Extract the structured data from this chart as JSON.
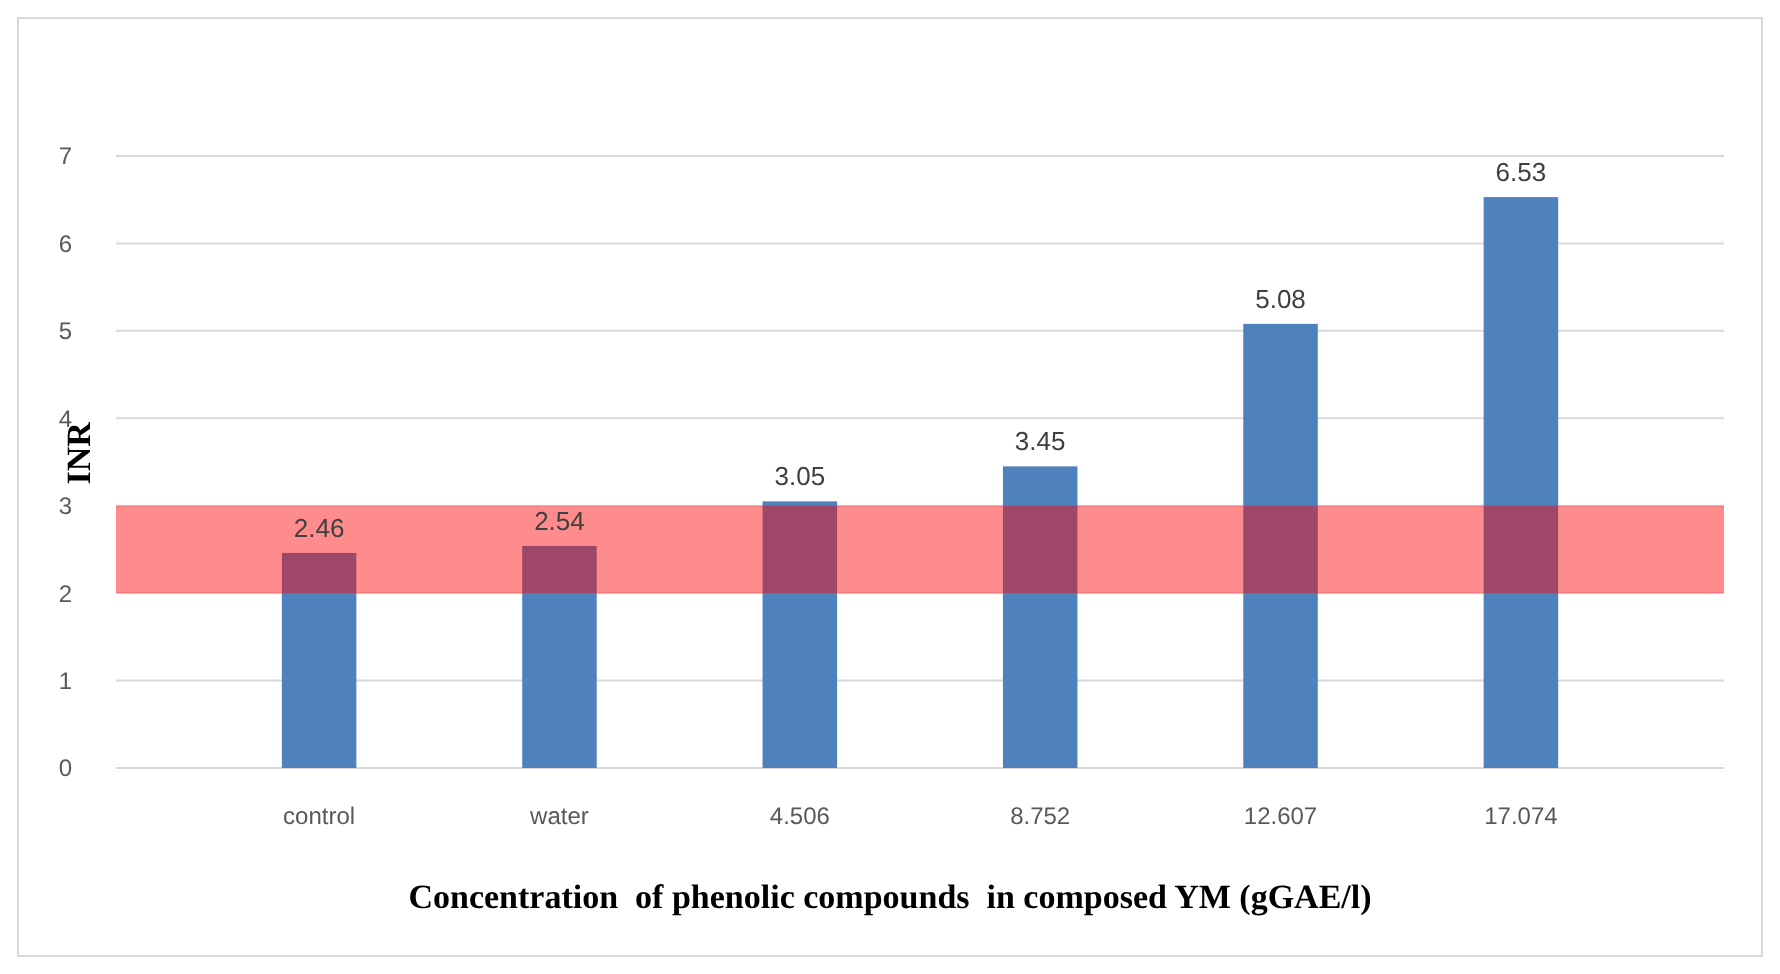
{
  "chart_data": {
    "type": "bar",
    "xlabel": "Concentration  of phenolic compounds  in composed YM (gGAE/l)",
    "ylabel": "INR",
    "categories": [
      "control",
      "water",
      "4.506",
      "8.752",
      "12.607",
      "17.074"
    ],
    "values": [
      2.46,
      2.54,
      3.05,
      3.45,
      5.08,
      6.53
    ],
    "color": "#4f81bd",
    "data_labels": true,
    "ylim": [
      0,
      7
    ],
    "yticks": [
      0,
      1,
      2,
      3,
      4,
      5,
      6,
      7
    ],
    "grid": "y",
    "bands": [
      {
        "axis": "y",
        "from": 2,
        "to": 3,
        "color": "#ff0000"
      }
    ]
  }
}
